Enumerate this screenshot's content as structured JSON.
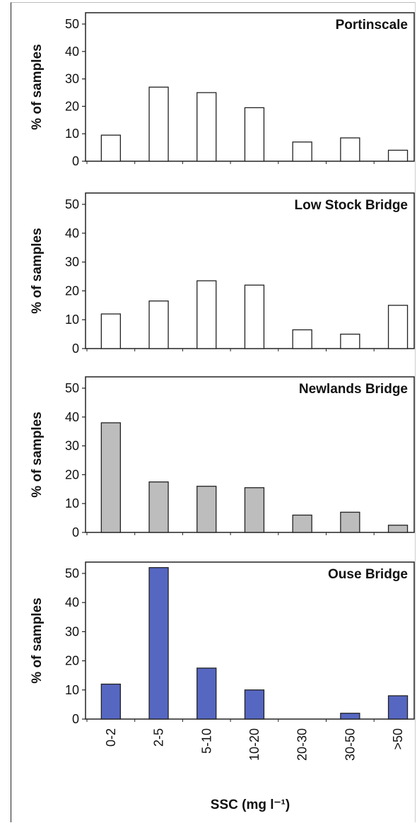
{
  "chart_data": [
    {
      "type": "bar",
      "title": "Portinscale",
      "ylabel": "% of samples",
      "ylim": [
        0,
        50
      ],
      "yticks": [
        0,
        10,
        20,
        30,
        40,
        50
      ],
      "categories": [
        "0-2",
        "2-5",
        "5-10",
        "10-20",
        "20-30",
        "30-50",
        ">50"
      ],
      "values": [
        9.5,
        27,
        25,
        19.5,
        7,
        8.5,
        4
      ],
      "bar_color": "#ffffff"
    },
    {
      "type": "bar",
      "title": "Low Stock Bridge",
      "ylabel": "% of samples",
      "ylim": [
        0,
        50
      ],
      "yticks": [
        0,
        10,
        20,
        30,
        40,
        50
      ],
      "categories": [
        "0-2",
        "2-5",
        "5-10",
        "10-20",
        "20-30",
        "30-50",
        ">50"
      ],
      "values": [
        12,
        16.5,
        23.5,
        22,
        6.5,
        5,
        15
      ],
      "bar_color": "#ffffff"
    },
    {
      "type": "bar",
      "title": "Newlands Bridge",
      "ylabel": "% of samples",
      "ylim": [
        0,
        50
      ],
      "yticks": [
        0,
        10,
        20,
        30,
        40,
        50
      ],
      "categories": [
        "0-2",
        "2-5",
        "5-10",
        "10-20",
        "20-30",
        "30-50",
        ">50"
      ],
      "values": [
        38,
        17.5,
        16,
        15.5,
        6,
        7,
        2.5
      ],
      "bar_color": "#bdbdbd"
    },
    {
      "type": "bar",
      "title": "Ouse Bridge",
      "ylabel": "% of samples",
      "ylim": [
        0,
        50
      ],
      "yticks": [
        0,
        10,
        20,
        30,
        40,
        50
      ],
      "categories": [
        "0-2",
        "2-5",
        "5-10",
        "10-20",
        "20-30",
        "30-50",
        ">50"
      ],
      "values": [
        12,
        52,
        17.5,
        10,
        0,
        2,
        8
      ],
      "bar_color": "#5667c2",
      "xlabel": "SSC (mg l⁻¹)"
    }
  ]
}
